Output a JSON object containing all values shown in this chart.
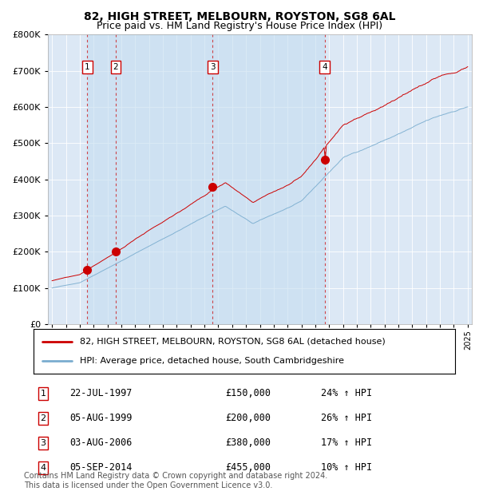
{
  "title": "82, HIGH STREET, MELBOURN, ROYSTON, SG8 6AL",
  "subtitle": "Price paid vs. HM Land Registry's House Price Index (HPI)",
  "background_color": "#ffffff",
  "plot_bg_color": "#dce8f5",
  "grid_color": "#ffffff",
  "hpi_color": "#7aadcf",
  "price_color": "#cc0000",
  "marker_color": "#cc0000",
  "vline_color": "#cc0000",
  "ylim": [
    0,
    800000
  ],
  "yticks": [
    0,
    100000,
    200000,
    300000,
    400000,
    500000,
    600000,
    700000,
    800000
  ],
  "x_start_year": 1995,
  "x_end_year": 2025,
  "purchases": [
    {
      "label": "1",
      "date_str": "22-JUL-1997",
      "year": 1997.55,
      "price": 150000,
      "hpi_pct": 24
    },
    {
      "label": "2",
      "date_str": "05-AUG-1999",
      "year": 1999.59,
      "price": 200000,
      "hpi_pct": 26
    },
    {
      "label": "3",
      "date_str": "03-AUG-2006",
      "year": 2006.59,
      "price": 380000,
      "hpi_pct": 17
    },
    {
      "label": "4",
      "date_str": "05-SEP-2014",
      "year": 2014.68,
      "price": 455000,
      "hpi_pct": 10
    }
  ],
  "legend_house_label": "82, HIGH STREET, MELBOURN, ROYSTON, SG8 6AL (detached house)",
  "legend_hpi_label": "HPI: Average price, detached house, South Cambridgeshire",
  "footnote": "Contains HM Land Registry data © Crown copyright and database right 2024.\nThis data is licensed under the Open Government Licence v3.0.",
  "title_fontsize": 10,
  "subtitle_fontsize": 9,
  "axis_fontsize": 8,
  "legend_fontsize": 8.5,
  "footnote_fontsize": 7
}
